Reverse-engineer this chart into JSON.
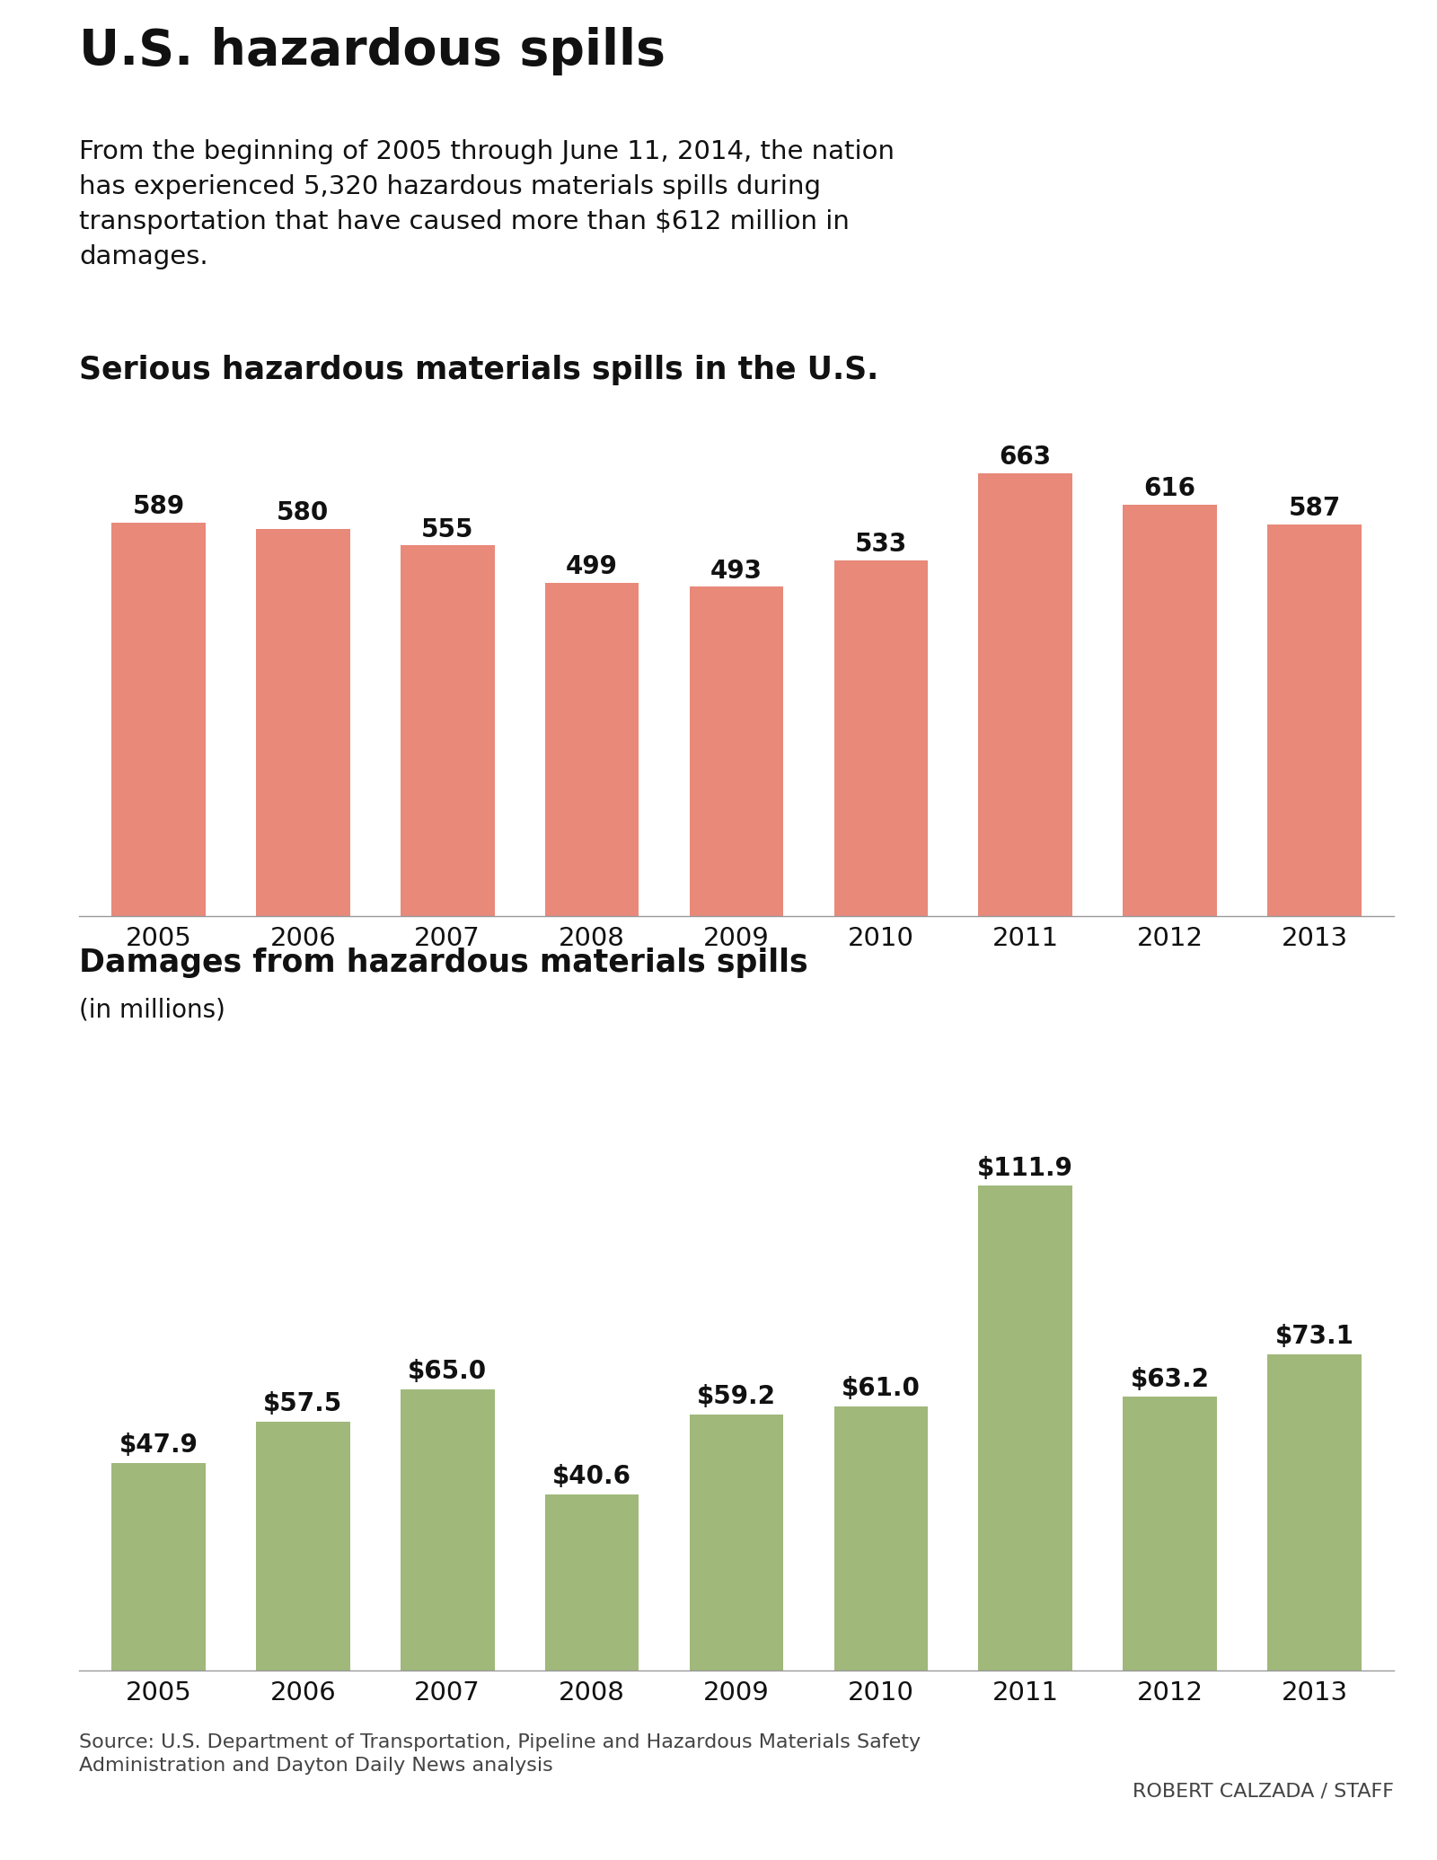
{
  "main_title": "U.S. hazardous spills",
  "subtitle_line1": "From the beginning of 2005 through June 11, 2014, the nation",
  "subtitle_line2": "has experienced 5,320 hazardous materials spills during",
  "subtitle_line3": "transportation that have caused more than $612 million in",
  "subtitle_line4": "damages.",
  "chart1_title": "Serious hazardous materials spills in the U.S.",
  "chart2_title": "Damages from hazardous materials spills",
  "chart2_subtitle": "(in millions)",
  "years": [
    "2005",
    "2006",
    "2007",
    "2008",
    "2009",
    "2010",
    "2011",
    "2012",
    "2013"
  ],
  "spills_values": [
    589,
    580,
    555,
    499,
    493,
    533,
    663,
    616,
    587
  ],
  "damages_values": [
    47.9,
    57.5,
    65.0,
    40.6,
    59.2,
    61.0,
    111.9,
    63.2,
    73.1
  ],
  "damages_labels": [
    "$47.9",
    "$57.5",
    "$65.0",
    "$40.6",
    "$59.2",
    "$61.0",
    "$111.9",
    "$63.2",
    "$73.1"
  ],
  "spills_color": "#E8897A",
  "damages_color": "#A0B87A",
  "background_color": "#FFFFFF",
  "source_text": "Source: U.S. Department of Transportation, Pipeline and Hazardous Materials Safety\nAdministration and Dayton Daily News analysis",
  "credit_text": "ROBERT CALZADA / STAFF",
  "grid_color": "#CCCCCC",
  "text_color": "#111111",
  "source_color": "#444444"
}
